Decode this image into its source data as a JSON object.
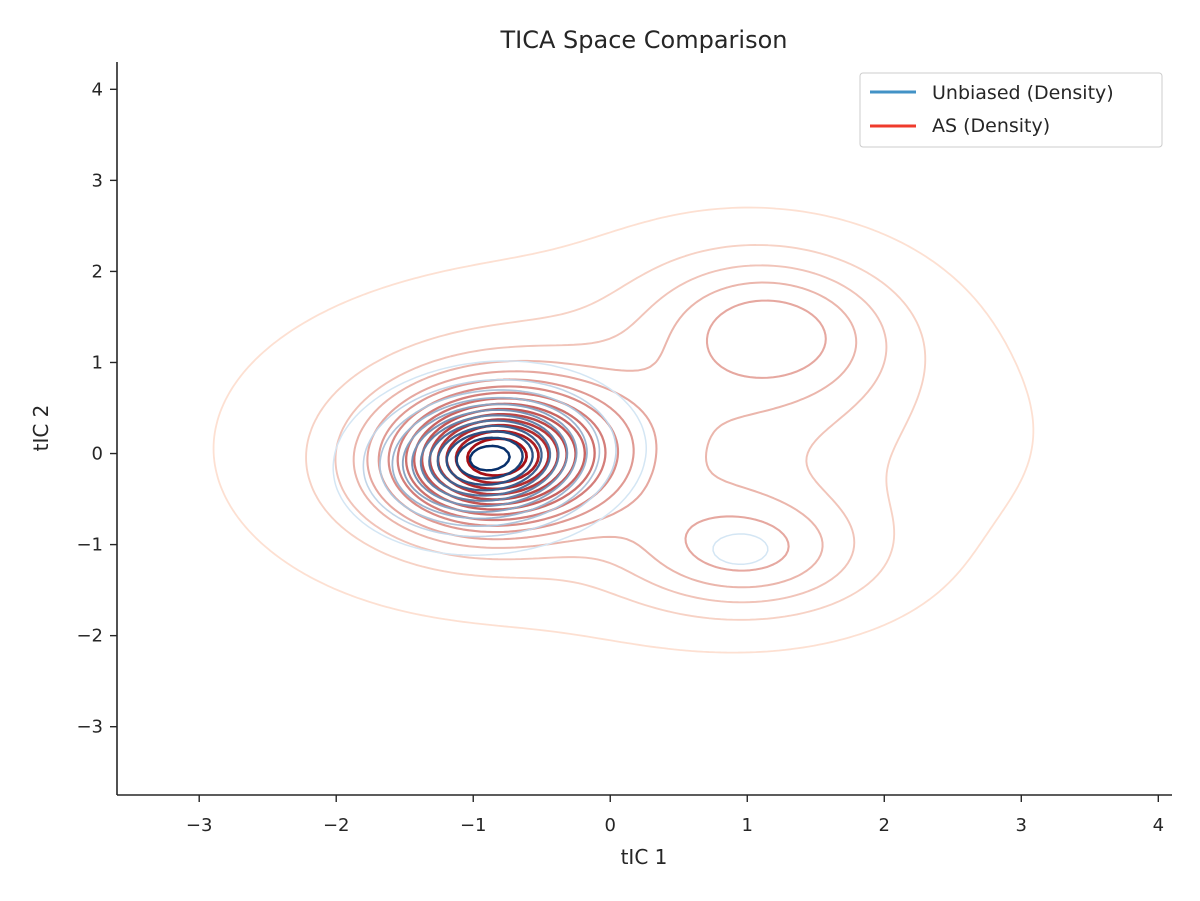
{
  "chart_data": {
    "type": "contour",
    "title": "TICA Space Comparison",
    "xlabel": "tIC 1",
    "ylabel": "tIC 2",
    "xlim": [
      -3.6,
      4.1
    ],
    "ylim": [
      -3.75,
      4.3
    ],
    "xticks": [
      -3,
      -2,
      -1,
      0,
      1,
      2,
      3,
      4
    ],
    "yticks": [
      -3,
      -2,
      -1,
      0,
      1,
      2,
      3,
      4
    ],
    "xtick_labels": [
      "−3",
      "−2",
      "−1",
      "0",
      "1",
      "2",
      "3",
      "4"
    ],
    "ytick_labels": [
      "−3",
      "−2",
      "−1",
      "0",
      "1",
      "2",
      "3",
      "4"
    ],
    "grid": false,
    "legend": {
      "placement": "top-right",
      "entries": [
        {
          "label": "Unbiased (Density)",
          "color": "#4292c6"
        },
        {
          "label": "AS (Density)",
          "color": "#ef3b2c"
        }
      ]
    },
    "series": [
      {
        "name": "Unbiased (Density)",
        "colormap": "Blues",
        "components": [
          {
            "weight": 1.0,
            "mean": [
              -0.88,
              -0.05
            ],
            "sigma": [
              0.45,
              0.42
            ],
            "rho": 0.1
          },
          {
            "weight": 0.05,
            "mean": [
              0.95,
              -1.05
            ],
            "sigma": [
              0.3,
              0.25
            ],
            "rho": 0.0
          }
        ],
        "level_range": [
          0.04,
          0.95
        ],
        "n_levels": 12
      },
      {
        "name": "AS (Density)",
        "colormap": "Reds",
        "components": [
          {
            "weight": 1.0,
            "mean": [
              -0.85,
              -0.05
            ],
            "sigma": [
              0.52,
              0.5
            ],
            "rho": 0.05
          },
          {
            "weight": 0.3,
            "mean": [
              1.2,
              1.4
            ],
            "sigma": [
              0.6,
              0.55
            ],
            "rho": -0.1
          },
          {
            "weight": 0.28,
            "mean": [
              1.0,
              -1.1
            ],
            "sigma": [
              0.6,
              0.45
            ],
            "rho": 0.0
          },
          {
            "weight": 0.2,
            "mean": [
              0.4,
              0.2
            ],
            "sigma": [
              1.3,
              0.95
            ],
            "rho": 0.0
          },
          {
            "weight": 0.08,
            "mean": [
              -1.0,
              0.0
            ],
            "sigma": [
              1.05,
              0.95
            ],
            "rho": 0.0
          }
        ],
        "level_range": [
          0.02,
          0.93
        ],
        "n_levels": 16
      }
    ],
    "colors": {
      "axis": "#262626",
      "blues_light": "#d4e6f4",
      "blues_dark": "#08306b",
      "reds_light": "#fde0d2",
      "reds_dark": "#a50f15"
    }
  }
}
